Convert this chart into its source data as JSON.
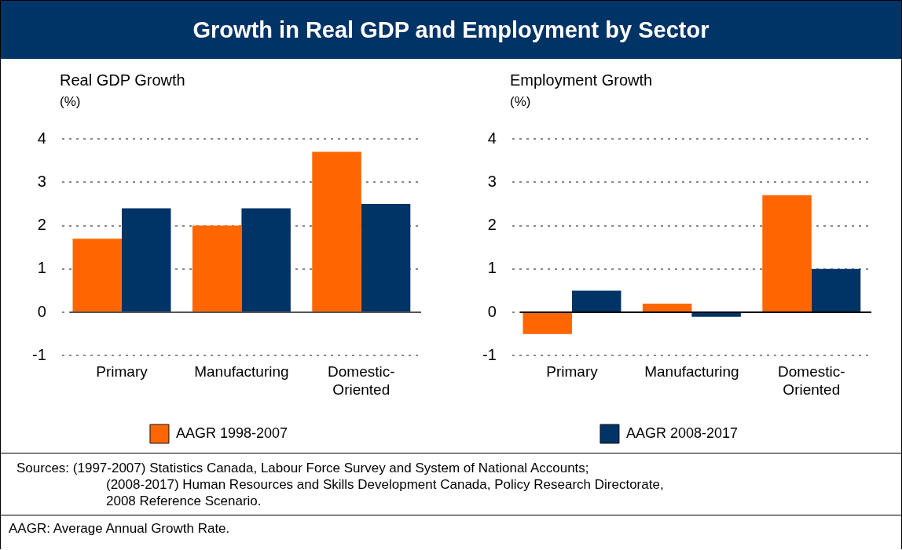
{
  "chart_data": [
    {
      "type": "bar",
      "title": "Growth in Real GDP and Employment by Sector",
      "ylabel": "Real GDP Growth\n(%)",
      "categories": [
        "Primary",
        "Manufacturing",
        "Domestic-Oriented"
      ],
      "series": [
        {
          "name": "AAGR 1998-2007",
          "color": "#ff6600",
          "values": [
            1.7,
            2.0,
            3.7
          ]
        },
        {
          "color": "#003366",
          "values": [
            2.4,
            2.4,
            2.5
          ]
        }
      ],
      "ylim": [
        -1,
        4
      ],
      "yticks": [
        -1,
        0,
        1,
        2,
        3,
        4
      ],
      "grid": "y",
      "legend": "bottom",
      "annotations": [
        "Sources: (1997-2007) Statistics Canada, Labour Force Survey and System of National Accounts;",
        "(2008-2017) Human Resources and Skills Development Canada, Policy Research Directorate, 2008 Reference Scenario.",
        "AAGR: Average Annual Growth Rate."
      ]
    },
    {
      "type": "bar",
      "ylabel": "Employment Growth\n(%)",
      "categories": [
        "Primary",
        "Manufacturing",
        "Domestic-Oriented"
      ],
      "series": [
        {
          "color": "#ff6600",
          "values": [
            -0.5,
            0.2,
            2.7
          ]
        },
        {
          "name": "AAGR 2008-2017",
          "color": "#003366",
          "values": [
            0.5,
            -0.1,
            1.0
          ]
        }
      ],
      "ylim": [
        -1,
        4
      ],
      "yticks": [
        -1,
        0,
        1,
        2,
        3,
        4
      ],
      "grid": "y",
      "legend": "bottom"
    }
  ]
}
